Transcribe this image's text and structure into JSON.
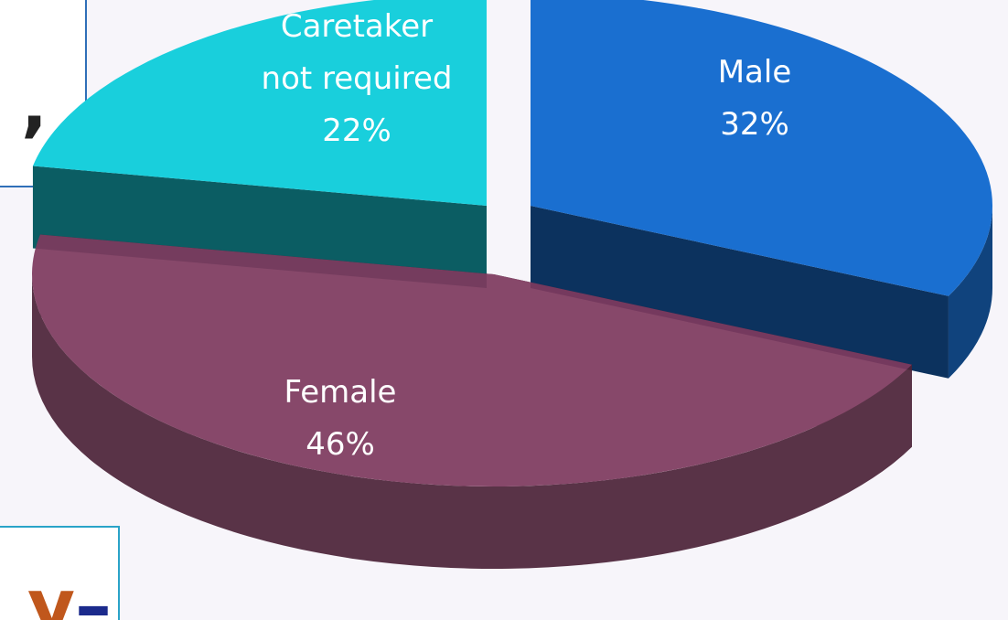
{
  "chart_data": {
    "type": "pie",
    "categories": [
      "Male",
      "Female",
      "Caretaker not required"
    ],
    "values": [
      32,
      46,
      22
    ],
    "value_labels": [
      "32%",
      "46%",
      "22%"
    ],
    "colors": [
      "#1a6fd0",
      "#7e3a5e",
      "#19cfdc"
    ],
    "annotations": [
      "’",
      "y",
      "–"
    ]
  }
}
